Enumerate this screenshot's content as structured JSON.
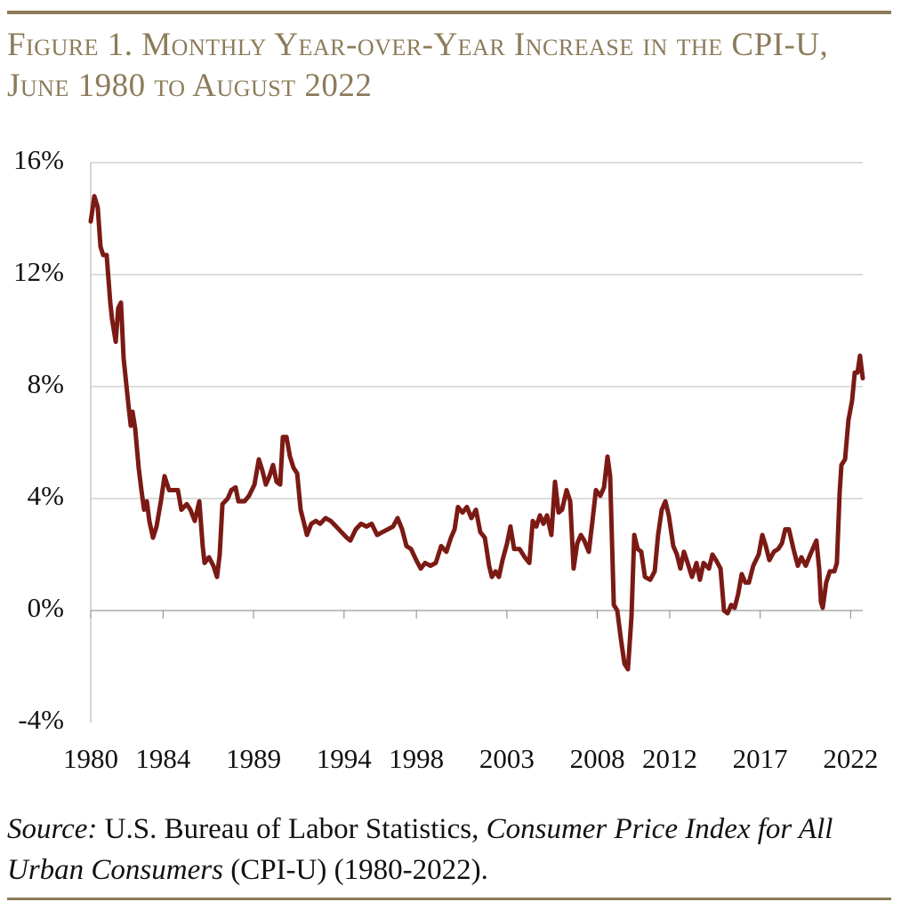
{
  "chart_data": {
    "type": "line",
    "title": "Figure 1. Monthly Year-over-Year Increase in the CPI-U, June 1980 to August 2022",
    "source_label": "Source:",
    "source_publisher": "U.S. Bureau of Labor Statistics,",
    "source_title": "Consumer Price Index for All Urban Consumers",
    "source_detail": "(CPI-U) (1980-2022).",
    "xlim": [
      1980,
      2022.67
    ],
    "xticks": [
      1980,
      1984,
      1989,
      1994,
      1998,
      2003,
      2008,
      2012,
      2017,
      2022
    ],
    "ylim": [
      -4,
      16
    ],
    "yticks": [
      {
        "value": -4,
        "label": "-4%"
      },
      {
        "value": 0,
        "label": "0%"
      },
      {
        "value": 4,
        "label": "4%"
      },
      {
        "value": 8,
        "label": "8%"
      },
      {
        "value": 12,
        "label": "12%"
      },
      {
        "value": 16,
        "label": "16%"
      }
    ],
    "grid": true,
    "x": [
      1980.0,
      1980.2,
      1980.39,
      1980.54,
      1980.69,
      1980.88,
      1981.08,
      1981.18,
      1981.38,
      1981.52,
      1981.67,
      1981.82,
      1982.06,
      1982.21,
      1982.31,
      1982.46,
      1982.65,
      1982.8,
      1982.95,
      1983.1,
      1983.24,
      1983.44,
      1983.64,
      1983.88,
      1984.08,
      1984.33,
      1984.57,
      1984.82,
      1985.01,
      1985.31,
      1985.51,
      1985.75,
      1986.0,
      1986.19,
      1986.29,
      1986.54,
      1986.78,
      1986.98,
      1987.13,
      1987.28,
      1987.57,
      1987.77,
      1988.01,
      1988.16,
      1988.5,
      1988.75,
      1989.05,
      1989.29,
      1989.49,
      1989.68,
      1989.88,
      1990.08,
      1990.27,
      1990.47,
      1990.62,
      1990.82,
      1991.01,
      1991.21,
      1991.41,
      1991.6,
      1991.8,
      1991.95,
      1992.19,
      1992.44,
      1992.68,
      1992.98,
      1993.27,
      1993.57,
      1993.86,
      1994.16,
      1994.35,
      1994.65,
      1994.94,
      1995.24,
      1995.53,
      1995.83,
      1996.12,
      1996.42,
      1996.71,
      1996.96,
      1997.21,
      1997.45,
      1997.7,
      1997.99,
      1998.24,
      1998.48,
      1998.78,
      1999.07,
      1999.37,
      1999.66,
      1999.91,
      2000.11,
      2000.3,
      2000.55,
      2000.79,
      2001.04,
      2001.29,
      2001.53,
      2001.78,
      2002.02,
      2002.17,
      2002.37,
      2002.56,
      2002.76,
      2003.01,
      2003.2,
      2003.4,
      2003.7,
      2003.99,
      2004.24,
      2004.43,
      2004.63,
      2004.83,
      2005.02,
      2005.22,
      2005.46,
      2005.66,
      2005.86,
      2006.05,
      2006.3,
      2006.5,
      2006.69,
      2006.89,
      2007.09,
      2007.28,
      2007.53,
      2007.73,
      2007.92,
      2008.17,
      2008.37,
      2008.56,
      2008.71,
      2008.91,
      2009.1,
      2009.3,
      2009.5,
      2009.69,
      2009.89,
      2010.04,
      2010.23,
      2010.43,
      2010.63,
      2010.92,
      2011.17,
      2011.36,
      2011.56,
      2011.76,
      2011.95,
      2012.2,
      2012.4,
      2012.59,
      2012.79,
      2012.99,
      2013.23,
      2013.48,
      2013.67,
      2013.87,
      2014.17,
      2014.36,
      2014.56,
      2014.81,
      2015.0,
      2015.2,
      2015.4,
      2015.59,
      2015.79,
      2015.98,
      2016.18,
      2016.38,
      2016.62,
      2016.92,
      2017.12,
      2017.31,
      2017.51,
      2017.76,
      2018.0,
      2018.2,
      2018.39,
      2018.59,
      2018.84,
      2019.08,
      2019.28,
      2019.52,
      2019.77,
      2019.97,
      2020.11,
      2020.26,
      2020.36,
      2020.46,
      2020.65,
      2020.85,
      2021.1,
      2021.24,
      2021.39,
      2021.49,
      2021.69,
      2021.88,
      2022.08,
      2022.23,
      2022.38,
      2022.52,
      2022.67
    ],
    "series": [
      {
        "color": "#7b1a14",
        "values": [
          13.9,
          14.8,
          14.4,
          13.0,
          12.7,
          12.7,
          11.0,
          10.4,
          9.6,
          10.8,
          11.0,
          9.0,
          7.5,
          6.6,
          7.1,
          6.5,
          5.1,
          4.3,
          3.6,
          3.9,
          3.2,
          2.6,
          3.0,
          3.9,
          4.8,
          4.3,
          4.3,
          4.3,
          3.6,
          3.8,
          3.6,
          3.2,
          3.9,
          2.3,
          1.7,
          1.9,
          1.6,
          1.2,
          2.0,
          3.8,
          4.0,
          4.3,
          4.4,
          3.9,
          3.9,
          4.1,
          4.5,
          5.4,
          5.0,
          4.5,
          4.8,
          5.2,
          4.6,
          4.5,
          6.2,
          6.2,
          5.5,
          5.1,
          4.9,
          3.6,
          3.1,
          2.7,
          3.1,
          3.2,
          3.1,
          3.3,
          3.2,
          3.0,
          2.8,
          2.6,
          2.5,
          2.9,
          3.1,
          3.0,
          3.1,
          2.7,
          2.8,
          2.9,
          3.0,
          3.3,
          2.9,
          2.3,
          2.2,
          1.8,
          1.5,
          1.7,
          1.6,
          1.7,
          2.3,
          2.1,
          2.6,
          2.9,
          3.7,
          3.5,
          3.7,
          3.3,
          3.6,
          2.8,
          2.6,
          1.6,
          1.2,
          1.4,
          1.2,
          1.8,
          2.4,
          3.0,
          2.2,
          2.2,
          1.9,
          1.7,
          3.2,
          3.0,
          3.4,
          3.1,
          3.4,
          2.7,
          4.6,
          3.5,
          3.6,
          4.3,
          3.9,
          1.5,
          2.4,
          2.7,
          2.5,
          2.1,
          3.2,
          4.3,
          4.1,
          4.4,
          5.5,
          4.8,
          0.2,
          0.0,
          -1.0,
          -1.9,
          -2.1,
          -0.2,
          2.7,
          2.2,
          2.1,
          1.2,
          1.1,
          1.4,
          2.7,
          3.6,
          3.9,
          3.4,
          2.3,
          2.0,
          1.5,
          2.1,
          1.7,
          1.2,
          1.7,
          1.1,
          1.7,
          1.5,
          2.0,
          1.8,
          1.5,
          0.0,
          -0.1,
          0.2,
          0.1,
          0.6,
          1.3,
          1.0,
          1.0,
          1.6,
          2.0,
          2.7,
          2.3,
          1.8,
          2.1,
          2.2,
          2.4,
          2.9,
          2.9,
          2.2,
          1.6,
          1.9,
          1.6,
          2.0,
          2.3,
          2.5,
          1.5,
          0.3,
          0.1,
          1.0,
          1.4,
          1.4,
          1.7,
          4.2,
          5.2,
          5.4,
          6.8,
          7.5,
          8.5,
          8.5,
          9.1,
          8.3
        ]
      }
    ]
  }
}
